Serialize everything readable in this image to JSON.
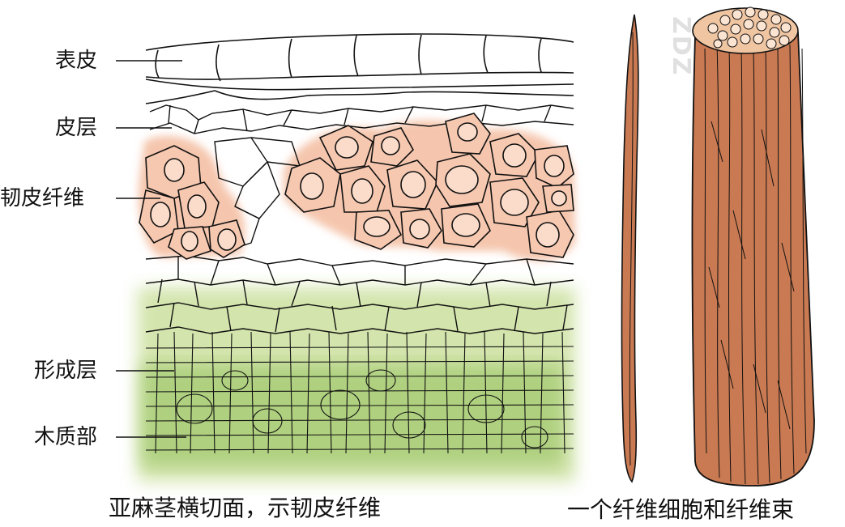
{
  "labels": {
    "epidermis": "表皮",
    "cortex": "皮层",
    "phloem_fiber": "韧皮纤维",
    "cambium": "形成层",
    "xylem": "木质部"
  },
  "captions": {
    "cross_section": "亚麻茎横切面，示韧皮纤维",
    "fiber_bundle": "一个纤维细胞和纤维束"
  },
  "colors": {
    "fiber_fill": "#f2b79a",
    "fiber_cell": "#f7c8b0",
    "cambium_green": "#cfe2a4",
    "xylem_green": "#a9cd78",
    "fiber_brown": "#c97a52",
    "bundle_top": "#efc5a2",
    "outline": "#111111"
  },
  "watermark_text": "ZDZ"
}
